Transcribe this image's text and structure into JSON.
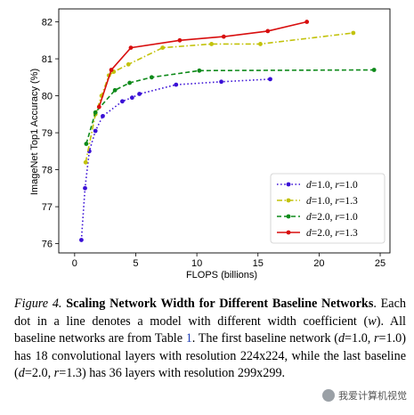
{
  "chart_data": {
    "type": "line",
    "xlabel": "FLOPS (billions)",
    "ylabel": "ImageNet Top1 Accuracy (%)",
    "xlim": [
      -1.3,
      25.8
    ],
    "ylim": [
      75.75,
      82.35
    ],
    "xticks": [
      "0",
      "5",
      "10",
      "15",
      "20",
      "25"
    ],
    "xtick_values": [
      0,
      5,
      10,
      15,
      20,
      25
    ],
    "yticks": [
      "76",
      "77",
      "78",
      "79",
      "80",
      "81",
      "82"
    ],
    "ytick_values": [
      76,
      77,
      78,
      79,
      80,
      81,
      82
    ],
    "legend_position": "lower-right",
    "grid": false,
    "series": [
      {
        "name": "d=1.0, r=1.0",
        "name_parts": [
          "d",
          "=1.0, ",
          "r",
          "=1.0"
        ],
        "color": "#3a10d6",
        "dash": "dotted",
        "x": [
          0.55,
          0.85,
          1.2,
          1.7,
          2.3,
          3.9,
          4.7,
          5.3,
          8.3,
          12.0,
          16.0
        ],
        "y": [
          76.1,
          77.5,
          78.5,
          79.05,
          79.45,
          79.85,
          79.95,
          80.05,
          80.3,
          80.38,
          80.45
        ]
      },
      {
        "name": "d=1.0, r=1.3",
        "name_parts": [
          "d",
          "=1.0, ",
          "r",
          "=1.3"
        ],
        "color": "#c2c20a",
        "dash": "dashdot",
        "x": [
          0.9,
          1.7,
          2.2,
          2.8,
          3.2,
          4.4,
          7.2,
          11.2,
          15.2,
          22.8
        ],
        "y": [
          78.2,
          79.5,
          80.0,
          80.55,
          80.65,
          80.85,
          81.3,
          81.4,
          81.4,
          81.7
        ]
      },
      {
        "name": "d=2.0, r=1.0",
        "name_parts": [
          "d",
          "=2.0, ",
          "r",
          "=1.0"
        ],
        "color": "#0e8a1a",
        "dash": "dashed",
        "x": [
          0.95,
          1.7,
          3.3,
          4.5,
          6.3,
          10.2,
          24.5
        ],
        "y": [
          78.7,
          79.55,
          80.15,
          80.35,
          80.5,
          80.68,
          80.7
        ]
      },
      {
        "name": "d=2.0, r=1.3",
        "name_parts": [
          "d",
          "=2.0, ",
          "r",
          "=1.3"
        ],
        "color": "#d80e0e",
        "dash": "solid",
        "x": [
          2.0,
          3.0,
          4.6,
          8.6,
          12.2,
          15.8,
          19.0
        ],
        "y": [
          79.7,
          80.7,
          81.3,
          81.5,
          81.6,
          81.75,
          82.0
        ]
      }
    ]
  },
  "caption": {
    "label": "Figure 4.",
    "title": "Scaling Network Width for Different Baseline Networks",
    "body": [
      {
        "t": ". Each dot in a line denotes a model with different width coefficient ("
      },
      {
        "t": "w",
        "i": true
      },
      {
        "t": "). All baseline networks are from Table "
      },
      {
        "t": "1",
        "ref": true
      },
      {
        "t": ". The first baseline network ("
      },
      {
        "t": "d",
        "i": true
      },
      {
        "t": "=1.0, "
      },
      {
        "t": "r",
        "i": true
      },
      {
        "t": "=1.0) has 18 convolutional layers with resolution 224x224, while the last baseline ("
      },
      {
        "t": "d",
        "i": true
      },
      {
        "t": "=2.0, "
      },
      {
        "t": "r",
        "i": true
      },
      {
        "t": "=1.3) has 36 layers with resolution 299x299."
      }
    ]
  },
  "watermark": {
    "text": "我爱计算机视觉"
  }
}
